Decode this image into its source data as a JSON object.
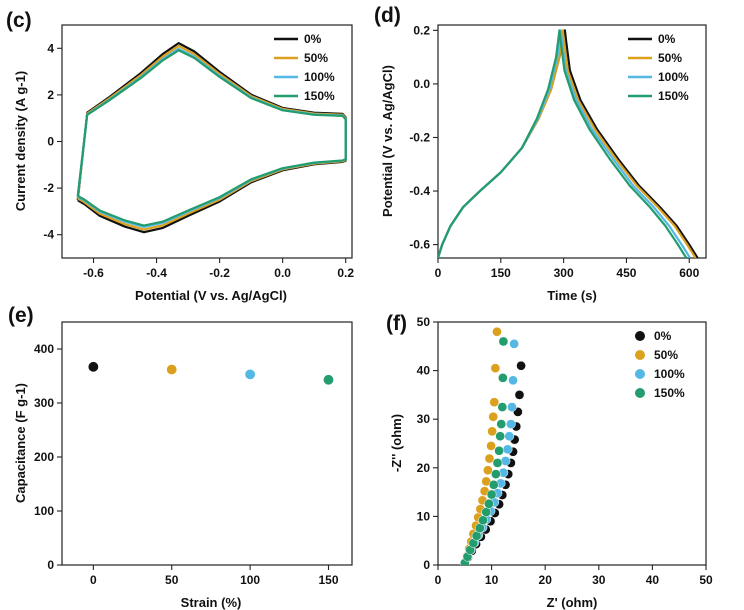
{
  "colors": {
    "s0": "#111111",
    "s50": "#dba11e",
    "s100": "#55b8e4",
    "s150": "#239c6e"
  },
  "chart_data": [
    {
      "panel": "(c)",
      "type": "line",
      "title": "",
      "xlabel": "Potential (V vs. Ag/AgCl)",
      "ylabel": "Current density (A g-1)",
      "xlim": [
        -0.7,
        0.22
      ],
      "ylim": [
        -5,
        5
      ],
      "xticks": [
        -0.6,
        -0.4,
        -0.2,
        0.0,
        0.2
      ],
      "xtick_labels": [
        "-0.6",
        "-0.4",
        "-0.2",
        "0.0",
        "0.2"
      ],
      "yticks": [
        -4,
        -2,
        0,
        2,
        4
      ],
      "ytick_labels": [
        "-4",
        "-2",
        "0",
        "2",
        "4"
      ],
      "legend": [
        "0%",
        "50%",
        "100%",
        "150%"
      ],
      "legend_position": "top-right",
      "series": [
        {
          "name": "0%",
          "scale": 1.03,
          "x": [
            -0.65,
            -0.62,
            -0.55,
            -0.45,
            -0.38,
            -0.33,
            -0.28,
            -0.2,
            -0.1,
            0.0,
            0.1,
            0.19,
            0.2,
            0.2,
            0.19,
            0.1,
            0.0,
            -0.1,
            -0.2,
            -0.3,
            -0.38,
            -0.44,
            -0.5,
            -0.58,
            -0.63,
            -0.65
          ],
          "y": [
            -2.45,
            1.2,
            1.85,
            2.85,
            3.65,
            4.1,
            3.75,
            2.9,
            1.95,
            1.4,
            1.2,
            1.15,
            1.0,
            -0.8,
            -0.85,
            -0.95,
            -1.2,
            -1.7,
            -2.5,
            -3.1,
            -3.6,
            -3.78,
            -3.55,
            -3.1,
            -2.6,
            -2.45
          ]
        },
        {
          "name": "50%",
          "scale": 1.0,
          "x": [
            -0.65,
            -0.62,
            -0.55,
            -0.45,
            -0.38,
            -0.33,
            -0.28,
            -0.2,
            -0.1,
            0.0,
            0.1,
            0.19,
            0.2,
            0.2,
            0.19,
            0.1,
            0.0,
            -0.1,
            -0.2,
            -0.3,
            -0.38,
            -0.44,
            -0.5,
            -0.58,
            -0.63,
            -0.65
          ],
          "y": [
            -2.45,
            1.2,
            1.85,
            2.85,
            3.65,
            4.1,
            3.75,
            2.9,
            1.95,
            1.4,
            1.2,
            1.15,
            1.0,
            -0.8,
            -0.85,
            -0.95,
            -1.2,
            -1.7,
            -2.5,
            -3.1,
            -3.6,
            -3.78,
            -3.55,
            -3.1,
            -2.6,
            -2.45
          ]
        },
        {
          "name": "100%",
          "scale": 0.97,
          "x": [
            -0.65,
            -0.62,
            -0.55,
            -0.45,
            -0.38,
            -0.33,
            -0.28,
            -0.2,
            -0.1,
            0.0,
            0.1,
            0.19,
            0.2,
            0.2,
            0.19,
            0.1,
            0.0,
            -0.1,
            -0.2,
            -0.3,
            -0.38,
            -0.44,
            -0.5,
            -0.58,
            -0.63,
            -0.65
          ],
          "y": [
            -2.45,
            1.2,
            1.85,
            2.85,
            3.65,
            4.1,
            3.75,
            2.9,
            1.95,
            1.4,
            1.2,
            1.15,
            1.0,
            -0.8,
            -0.85,
            -0.95,
            -1.2,
            -1.7,
            -2.5,
            -3.1,
            -3.6,
            -3.78,
            -3.55,
            -3.1,
            -2.6,
            -2.45
          ]
        },
        {
          "name": "150%",
          "scale": 0.955,
          "x": [
            -0.65,
            -0.62,
            -0.55,
            -0.45,
            -0.38,
            -0.33,
            -0.28,
            -0.2,
            -0.1,
            0.0,
            0.1,
            0.19,
            0.2,
            0.2,
            0.19,
            0.1,
            0.0,
            -0.1,
            -0.2,
            -0.3,
            -0.38,
            -0.44,
            -0.5,
            -0.58,
            -0.63,
            -0.65
          ],
          "y": [
            -2.45,
            1.2,
            1.85,
            2.85,
            3.65,
            4.1,
            3.75,
            2.9,
            1.95,
            1.4,
            1.2,
            1.15,
            1.0,
            -0.8,
            -0.85,
            -0.95,
            -1.2,
            -1.7,
            -2.5,
            -3.1,
            -3.6,
            -3.78,
            -3.55,
            -3.1,
            -2.6,
            -2.45
          ]
        }
      ]
    },
    {
      "panel": "(d)",
      "type": "line",
      "title": "",
      "xlabel": "Time (s)",
      "ylabel": "Potential (V vs. Ag/AgCl)",
      "xlim": [
        0,
        640
      ],
      "ylim": [
        -0.65,
        0.22
      ],
      "xticks": [
        0,
        150,
        300,
        450,
        600
      ],
      "xtick_labels": [
        "0",
        "150",
        "300",
        "450",
        "600"
      ],
      "yticks": [
        -0.6,
        -0.4,
        -0.2,
        0.0,
        0.2
      ],
      "ytick_labels": [
        "-0.6",
        "-0.4",
        "-0.2",
        "0.0",
        "0.2"
      ],
      "legend": [
        "0%",
        "50%",
        "100%",
        "150%"
      ],
      "legend_position": "top-right",
      "series": [
        {
          "name": "0%",
          "x": [
            0,
            10,
            30,
            60,
            100,
            150,
            200,
            240,
            270,
            290,
            303,
            306,
            315,
            340,
            380,
            430,
            480,
            530,
            570,
            600,
            620
          ],
          "y": [
            -0.65,
            -0.6,
            -0.53,
            -0.46,
            -0.4,
            -0.33,
            -0.24,
            -0.13,
            -0.02,
            0.1,
            0.2,
            0.16,
            0.05,
            -0.06,
            -0.17,
            -0.28,
            -0.38,
            -0.46,
            -0.53,
            -0.6,
            -0.65
          ]
        },
        {
          "name": "50%",
          "x": [
            0,
            10,
            30,
            60,
            100,
            150,
            200,
            240,
            270,
            290,
            298,
            301,
            310,
            335,
            375,
            425,
            475,
            525,
            565,
            595,
            615
          ],
          "y": [
            -0.65,
            -0.6,
            -0.53,
            -0.46,
            -0.4,
            -0.33,
            -0.24,
            -0.13,
            -0.02,
            0.1,
            0.2,
            0.16,
            0.05,
            -0.06,
            -0.17,
            -0.28,
            -0.38,
            -0.46,
            -0.53,
            -0.6,
            -0.65
          ]
        },
        {
          "name": "100%",
          "x": [
            0,
            10,
            30,
            60,
            100,
            150,
            200,
            238,
            266,
            285,
            293,
            296,
            305,
            330,
            368,
            418,
            466,
            515,
            552,
            582,
            602
          ],
          "y": [
            -0.65,
            -0.6,
            -0.53,
            -0.46,
            -0.4,
            -0.33,
            -0.24,
            -0.13,
            -0.02,
            0.1,
            0.2,
            0.16,
            0.05,
            -0.06,
            -0.17,
            -0.28,
            -0.38,
            -0.46,
            -0.53,
            -0.6,
            -0.65
          ]
        },
        {
          "name": "150%",
          "x": [
            0,
            10,
            30,
            60,
            100,
            150,
            200,
            236,
            263,
            282,
            290,
            293,
            302,
            325,
            362,
            410,
            458,
            506,
            543,
            573,
            593
          ],
          "y": [
            -0.65,
            -0.6,
            -0.53,
            -0.46,
            -0.4,
            -0.33,
            -0.24,
            -0.13,
            -0.02,
            0.1,
            0.2,
            0.16,
            0.05,
            -0.06,
            -0.17,
            -0.28,
            -0.38,
            -0.46,
            -0.53,
            -0.6,
            -0.65
          ]
        }
      ]
    },
    {
      "panel": "(e)",
      "type": "scatter",
      "title": "",
      "xlabel": "Strain (%)",
      "ylabel": "Capacitance (F g-1)",
      "xlim": [
        -20,
        165
      ],
      "ylim": [
        0,
        450
      ],
      "xticks": [
        0,
        50,
        100,
        150
      ],
      "xtick_labels": [
        "0",
        "50",
        "100",
        "150"
      ],
      "yticks": [
        0,
        100,
        200,
        300,
        400
      ],
      "ytick_labels": [
        "0",
        "100",
        "200",
        "300",
        "400"
      ],
      "points": [
        {
          "name": "0%",
          "x": 0,
          "y": 367
        },
        {
          "name": "50%",
          "x": 50,
          "y": 362
        },
        {
          "name": "100%",
          "x": 100,
          "y": 353
        },
        {
          "name": "150%",
          "x": 150,
          "y": 343
        }
      ]
    },
    {
      "panel": "(f)",
      "type": "scatter",
      "title": "",
      "xlabel": "Z' (ohm)",
      "ylabel": "-Z'' (ohm)",
      "xlim": [
        0,
        50
      ],
      "ylim": [
        0,
        50
      ],
      "xticks": [
        0,
        10,
        20,
        30,
        40,
        50
      ],
      "xtick_labels": [
        "0",
        "10",
        "20",
        "30",
        "40",
        "50"
      ],
      "yticks": [
        0,
        10,
        20,
        30,
        40,
        50
      ],
      "ytick_labels": [
        "0",
        "10",
        "20",
        "30",
        "40",
        "50"
      ],
      "legend": [
        "0%",
        "50%",
        "100%",
        "150%"
      ],
      "legend_position": "top-right",
      "series": [
        {
          "name": "0%",
          "x": [
            5.0,
            5.6,
            6.3,
            7.1,
            8.0,
            8.9,
            9.8,
            10.6,
            11.4,
            12.0,
            12.6,
            13.1,
            13.6,
            14.0,
            14.3,
            14.6,
            14.9,
            15.2,
            15.5
          ],
          "y": [
            0.4,
            1.6,
            2.9,
            4.3,
            5.8,
            7.3,
            9.0,
            10.7,
            12.5,
            14.4,
            16.5,
            18.7,
            21.0,
            23.3,
            25.8,
            28.5,
            31.5,
            35.0,
            41.0
          ]
        },
        {
          "name": "50%",
          "x": [
            5.0,
            5.4,
            5.8,
            6.2,
            6.6,
            7.1,
            7.5,
            7.9,
            8.3,
            8.7,
            9.0,
            9.3,
            9.6,
            9.9,
            10.1,
            10.3,
            10.5,
            10.7,
            11.0
          ],
          "y": [
            0.4,
            1.8,
            3.3,
            4.8,
            6.4,
            8.1,
            9.8,
            11.5,
            13.3,
            15.2,
            17.2,
            19.5,
            21.9,
            24.5,
            27.5,
            30.5,
            33.5,
            40.5,
            48.0
          ]
        },
        {
          "name": "100%",
          "x": [
            5.0,
            5.5,
            6.1,
            6.8,
            7.5,
            8.3,
            9.0,
            9.8,
            10.5,
            11.1,
            11.7,
            12.2,
            12.6,
            13.0,
            13.3,
            13.6,
            13.8,
            14.0,
            14.2
          ],
          "y": [
            0.4,
            1.7,
            3.1,
            4.6,
            6.1,
            7.7,
            9.4,
            11.1,
            12.9,
            14.8,
            16.8,
            19.0,
            21.4,
            23.8,
            26.5,
            29.0,
            32.5,
            38.0,
            45.5
          ]
        },
        {
          "name": "150%",
          "x": [
            5.0,
            5.5,
            6.0,
            6.6,
            7.2,
            7.8,
            8.4,
            9.0,
            9.5,
            10.0,
            10.4,
            10.8,
            11.1,
            11.4,
            11.6,
            11.8,
            12.0,
            12.1,
            12.2
          ],
          "y": [
            0.4,
            1.7,
            3.1,
            4.5,
            6.0,
            7.6,
            9.2,
            10.9,
            12.6,
            14.5,
            16.5,
            18.7,
            21.0,
            23.5,
            26.5,
            29.0,
            32.5,
            38.5,
            46.0
          ]
        }
      ]
    }
  ]
}
